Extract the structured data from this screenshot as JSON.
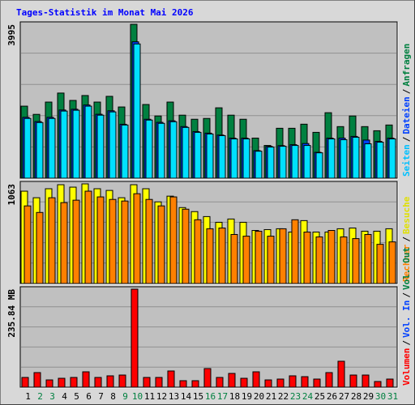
{
  "chart_data": [
    {
      "type": "bar",
      "title": "Tages-Statistik im Monat Mai 2026",
      "ylim": [
        0,
        3995
      ],
      "yticks": [
        3995
      ],
      "legend_separator": "/",
      "series": [
        {
          "name": "Anfragen",
          "color": "#008040",
          "label_color": "#008040",
          "values": [
            1870,
            1657,
            1976,
            2210,
            2019,
            2146,
            1976,
            2125,
            1849,
            3995,
            1913,
            1615,
            1976,
            1636,
            1530,
            1551,
            1827,
            1636,
            1530,
            1041,
            850,
            1296,
            1296,
            1402,
            1190,
            1700,
            1339,
            1615,
            1339,
            1232,
            1381
          ]
        },
        {
          "name": "Dateien",
          "color": "#0040ff",
          "label_color": "#0040ff",
          "values": [
            1580,
            1470,
            1580,
            1770,
            1790,
            1900,
            1660,
            1750,
            1400,
            3540,
            1530,
            1450,
            1490,
            1340,
            1210,
            1170,
            1120,
            1040,
            1040,
            715,
            825,
            845,
            870,
            900,
            672,
            1040,
            1040,
            1085,
            990,
            955,
            1040
          ]
        },
        {
          "name": "Seiten",
          "color": "#00e0ff",
          "label_color": "#00c0ff",
          "values": [
            1551,
            1445,
            1551,
            1743,
            1764,
            1870,
            1636,
            1721,
            1381,
            3485,
            1509,
            1424,
            1466,
            1318,
            1190,
            1148,
            1105,
            1020,
            1020,
            701,
            808,
            829,
            850,
            850,
            659,
            1020,
            999,
            1063,
            893,
            935,
            1020
          ]
        }
      ]
    },
    {
      "type": "bar",
      "ylim": [
        0,
        1063
      ],
      "yticks": [
        1063
      ],
      "legend_separator": "/",
      "series": [
        {
          "name": "Besuche",
          "color": "#ffff00",
          "label_color": "#e0e000",
          "values": [
            985,
            915,
            1011,
            1054,
            1028,
            1063,
            1011,
            993,
            915,
            1054,
            1011,
            871,
            932,
            810,
            767,
            714,
            653,
            688,
            653,
            566,
            575,
            584,
            549,
            671,
            549,
            549,
            584,
            592,
            558,
            558,
            584
          ]
        },
        {
          "name": "Rechner",
          "color": "#ff8000",
          "label_color": "#ff8000",
          "values": [
            828,
            758,
            915,
            863,
            889,
            985,
            924,
            897,
            880,
            958,
            897,
            828,
            924,
            793,
            680,
            584,
            592,
            523,
            505,
            558,
            505,
            584,
            680,
            549,
            497,
            566,
            497,
            479,
            523,
            418,
            444
          ]
        }
      ]
    },
    {
      "type": "bar",
      "ylim": [
        0,
        235.84
      ],
      "yticks": [
        {
          "value": 235.84,
          "label": "235.84 MB"
        }
      ],
      "legend_separator": "/",
      "categories": [
        "1",
        "2",
        "3",
        "4",
        "5",
        "6",
        "7",
        "8",
        "9",
        "10",
        "11",
        "12",
        "13",
        "14",
        "15",
        "16",
        "17",
        "18",
        "19",
        "20",
        "21",
        "22",
        "23",
        "24",
        "25",
        "26",
        "27",
        "28",
        "29",
        "30",
        "31"
      ],
      "category_colors": [
        "#000000",
        "#008040",
        "#008040",
        "#000000",
        "#000000",
        "#000000",
        "#000000",
        "#000000",
        "#008040",
        "#008040",
        "#000000",
        "#000000",
        "#000000",
        "#000000",
        "#000000",
        "#008040",
        "#008040",
        "#000000",
        "#000000",
        "#000000",
        "#000000",
        "#000000",
        "#008040",
        "#008040",
        "#000000",
        "#000000",
        "#000000",
        "#000000",
        "#000000",
        "#008040",
        "#008040"
      ],
      "series": [
        {
          "name": "Volumen",
          "color": "#ff0000",
          "label_color": "#ff0000",
          "values": [
            23.4,
            35.1,
            17.5,
            21.4,
            23.4,
            37.0,
            23.4,
            27.3,
            29.2,
            235.84,
            23.4,
            23.4,
            39.0,
            15.6,
            15.6,
            44.8,
            23.4,
            33.1,
            21.4,
            37.0,
            17.5,
            19.5,
            27.3,
            25.3,
            19.5,
            35.1,
            62.4,
            29.2,
            29.2,
            13.6,
            19.5
          ]
        }
      ],
      "extra_legend": [
        {
          "name": "Vol. In",
          "label_color": "#0040ff"
        },
        {
          "name": "Vol. Out",
          "label_color": "#008040"
        }
      ]
    }
  ]
}
